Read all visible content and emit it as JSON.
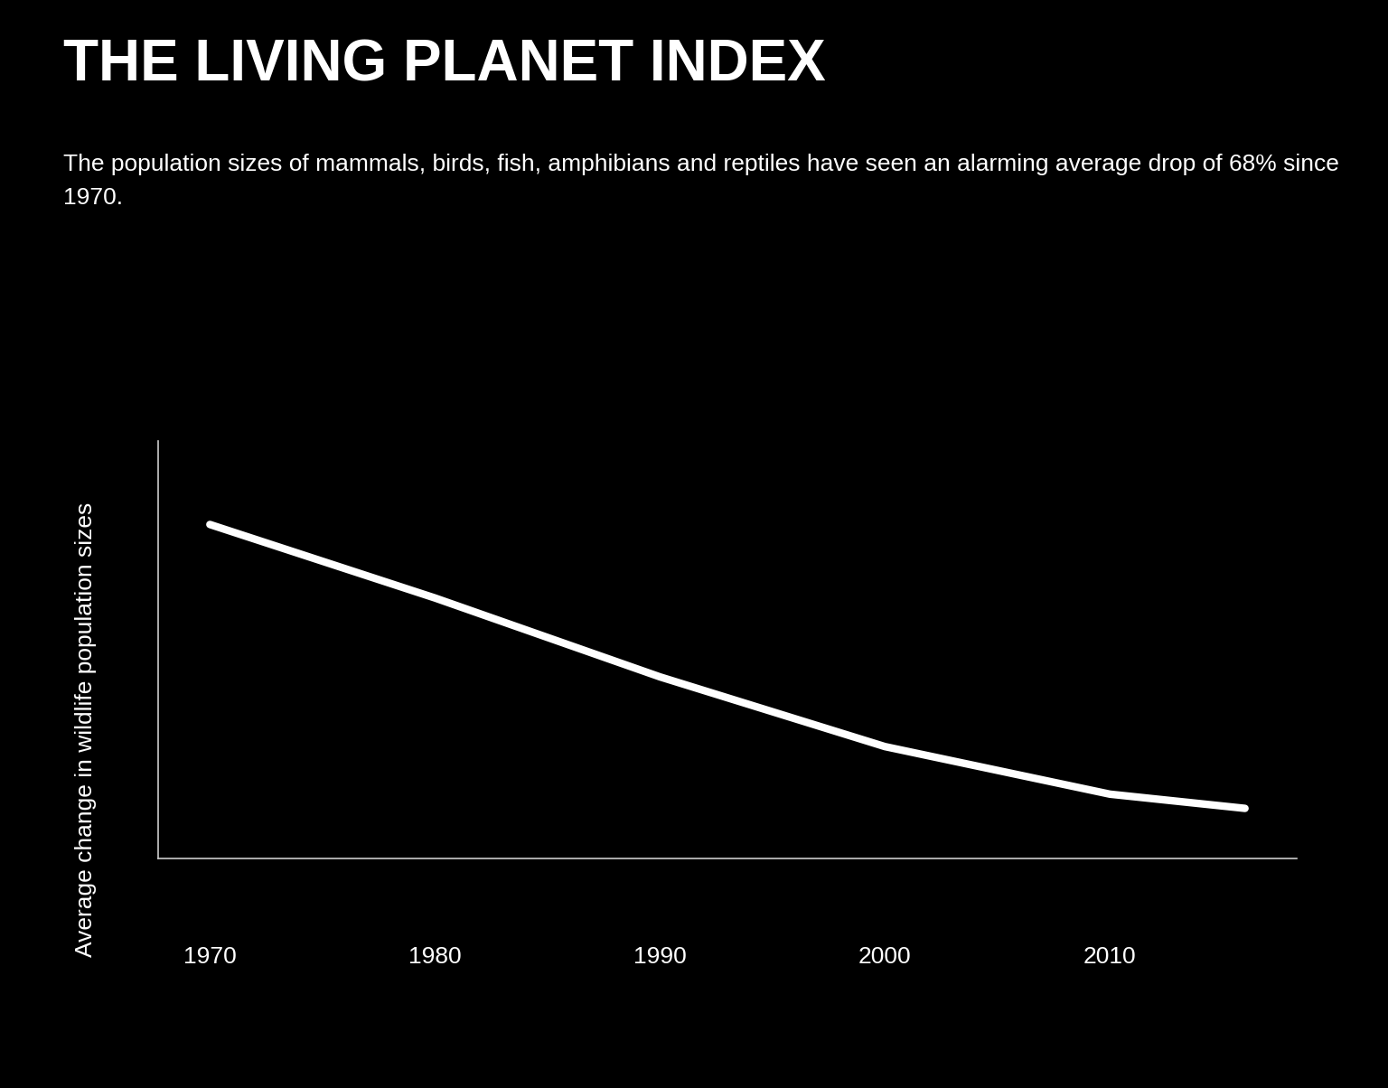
{
  "chart_data": {
    "type": "line",
    "title": "THE LIVING PLANET INDEX",
    "subtitle": "The population sizes of mammals, birds, fish, amphibians and reptiles have seen an alarming average drop of 68% since 1970.",
    "y_label": "Average change in wildlife population sizes",
    "x": [
      1970,
      1980,
      1990,
      2000,
      2010,
      2016
    ],
    "values": [
      1.0,
      0.824,
      0.635,
      0.468,
      0.354,
      0.32
    ],
    "color": "#ffffff",
    "xlim": [
      1967.7,
      2018.3
    ],
    "xticks": [
      1970,
      1980,
      1990,
      2000,
      2010
    ],
    "ylim": [
      0.2,
      1.2
    ],
    "yticks": [],
    "tick_labels": "x",
    "grid": false
  }
}
